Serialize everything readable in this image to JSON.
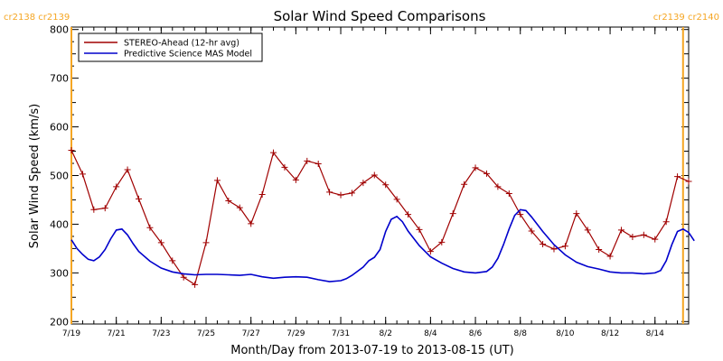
{
  "chart_data": {
    "type": "line",
    "title": "Solar Wind Speed Comparisons",
    "xlabel": "Month/Day from 2013-07-19 to 2013-08-15 (UT)",
    "ylabel": "Solar Wind Speed (km/s)",
    "xlim": [
      "2013-07-19",
      "2013-08-15T12:00"
    ],
    "ylim": [
      195,
      805
    ],
    "x_ticks": [
      {
        "date": "2013-07-19",
        "label": "7/19"
      },
      {
        "date": "2013-07-21",
        "label": "7/21"
      },
      {
        "date": "2013-07-23",
        "label": "7/23"
      },
      {
        "date": "2013-07-25",
        "label": "7/25"
      },
      {
        "date": "2013-07-27",
        "label": "7/27"
      },
      {
        "date": "2013-07-29",
        "label": "7/29"
      },
      {
        "date": "2013-07-31",
        "label": "7/31"
      },
      {
        "date": "2013-08-02",
        "label": "8/2"
      },
      {
        "date": "2013-08-04",
        "label": "8/4"
      },
      {
        "date": "2013-08-06",
        "label": "8/6"
      },
      {
        "date": "2013-08-08",
        "label": "8/8"
      },
      {
        "date": "2013-08-10",
        "label": "8/10"
      },
      {
        "date": "2013-08-12",
        "label": "8/12"
      },
      {
        "date": "2013-08-14",
        "label": "8/14"
      }
    ],
    "y_ticks": [
      200,
      300,
      400,
      500,
      600,
      700,
      800
    ],
    "legend_position": "top-left",
    "carrington_markers": [
      {
        "date": "2013-07-19",
        "label": "cr2138 cr2139",
        "color": "#f5a623"
      },
      {
        "date": "2013-08-15T06:00",
        "label": "cr2139 cr2140",
        "color": "#f5a623"
      }
    ],
    "series": [
      {
        "name": "STEREO-Ahead (12-hr avg)",
        "color": "#a00000",
        "markers": true,
        "points": [
          [
            "2013-07-19T00:00",
            552
          ],
          [
            "2013-07-19T12:00",
            503
          ],
          [
            "2013-07-20T00:00",
            430
          ],
          [
            "2013-07-20T12:00",
            433
          ],
          [
            "2013-07-21T00:00",
            477
          ],
          [
            "2013-07-21T12:00",
            512
          ],
          [
            "2013-07-22T00:00",
            452
          ],
          [
            "2013-07-22T12:00",
            393
          ],
          [
            "2013-07-23T00:00",
            362
          ],
          [
            "2013-07-23T12:00",
            325
          ],
          [
            "2013-07-24T00:00",
            291
          ],
          [
            "2013-07-24T12:00",
            276
          ],
          [
            "2013-07-25T00:00",
            362
          ],
          [
            "2013-07-25T12:00",
            490
          ],
          [
            "2013-07-26T00:00",
            448
          ],
          [
            "2013-07-26T12:00",
            434
          ],
          [
            "2013-07-27T00:00",
            401
          ],
          [
            "2013-07-27T12:00",
            461
          ],
          [
            "2013-07-28T00:00",
            547
          ],
          [
            "2013-07-28T12:00",
            517
          ],
          [
            "2013-07-29T00:00",
            491
          ],
          [
            "2013-07-29T12:00",
            530
          ],
          [
            "2013-07-30T00:00",
            524
          ],
          [
            "2013-07-30T12:00",
            466
          ],
          [
            "2013-07-31T00:00",
            460
          ],
          [
            "2013-07-31T12:00",
            464
          ],
          [
            "2013-08-01T00:00",
            485
          ],
          [
            "2013-08-01T12:00",
            501
          ],
          [
            "2013-08-02T00:00",
            481
          ],
          [
            "2013-08-02T12:00",
            451
          ],
          [
            "2013-08-03T00:00",
            420
          ],
          [
            "2013-08-03T12:00",
            389
          ],
          [
            "2013-08-04T00:00",
            344
          ],
          [
            "2013-08-04T12:00",
            363
          ],
          [
            "2013-08-05T00:00",
            422
          ],
          [
            "2013-08-05T12:00",
            482
          ],
          [
            "2013-08-06T00:00",
            516
          ],
          [
            "2013-08-06T12:00",
            504
          ],
          [
            "2013-08-07T00:00",
            477
          ],
          [
            "2013-08-07T12:00",
            463
          ],
          [
            "2013-08-08T00:00",
            420
          ],
          [
            "2013-08-08T12:00",
            386
          ],
          [
            "2013-08-09T00:00",
            359
          ],
          [
            "2013-08-09T12:00",
            349
          ],
          [
            "2013-08-10T00:00",
            355
          ],
          [
            "2013-08-10T12:00",
            422
          ],
          [
            "2013-08-11T00:00",
            388
          ],
          [
            "2013-08-11T12:00",
            348
          ],
          [
            "2013-08-12T00:00",
            334
          ],
          [
            "2013-08-12T12:00",
            388
          ],
          [
            "2013-08-13T00:00",
            374
          ],
          [
            "2013-08-13T12:00",
            378
          ],
          [
            "2013-08-14T00:00",
            369
          ],
          [
            "2013-08-14T12:00",
            405
          ],
          [
            "2013-08-15T00:00",
            498
          ],
          [
            "2013-08-15T12:00",
            488
          ]
        ]
      },
      {
        "name": "Predictive Science MAS Model",
        "color": "#0000cc",
        "markers": false,
        "points": [
          [
            "2013-07-19T00:00",
            368
          ],
          [
            "2013-07-19T06:00",
            350
          ],
          [
            "2013-07-19T12:00",
            338
          ],
          [
            "2013-07-19T18:00",
            328
          ],
          [
            "2013-07-20T00:00",
            325
          ],
          [
            "2013-07-20T06:00",
            333
          ],
          [
            "2013-07-20T12:00",
            348
          ],
          [
            "2013-07-20T18:00",
            370
          ],
          [
            "2013-07-21T00:00",
            388
          ],
          [
            "2013-07-21T06:00",
            390
          ],
          [
            "2013-07-21T12:00",
            378
          ],
          [
            "2013-07-21T18:00",
            360
          ],
          [
            "2013-07-22T00:00",
            344
          ],
          [
            "2013-07-22T12:00",
            324
          ],
          [
            "2013-07-23T00:00",
            310
          ],
          [
            "2013-07-23T12:00",
            302
          ],
          [
            "2013-07-24T00:00",
            298
          ],
          [
            "2013-07-24T12:00",
            296
          ],
          [
            "2013-07-25T00:00",
            297
          ],
          [
            "2013-07-25T12:00",
            297
          ],
          [
            "2013-07-26T00:00",
            296
          ],
          [
            "2013-07-26T12:00",
            295
          ],
          [
            "2013-07-27T00:00",
            297
          ],
          [
            "2013-07-27T12:00",
            292
          ],
          [
            "2013-07-28T00:00",
            289
          ],
          [
            "2013-07-28T12:00",
            291
          ],
          [
            "2013-07-29T00:00",
            292
          ],
          [
            "2013-07-29T12:00",
            291
          ],
          [
            "2013-07-30T00:00",
            286
          ],
          [
            "2013-07-30T12:00",
            282
          ],
          [
            "2013-07-31T00:00",
            284
          ],
          [
            "2013-07-31T06:00",
            288
          ],
          [
            "2013-07-31T12:00",
            295
          ],
          [
            "2013-08-01T00:00",
            312
          ],
          [
            "2013-08-01T06:00",
            325
          ],
          [
            "2013-08-01T12:00",
            332
          ],
          [
            "2013-08-01T18:00",
            348
          ],
          [
            "2013-08-02T00:00",
            385
          ],
          [
            "2013-08-02T06:00",
            410
          ],
          [
            "2013-08-02T12:00",
            416
          ],
          [
            "2013-08-02T18:00",
            405
          ],
          [
            "2013-08-03T00:00",
            386
          ],
          [
            "2013-08-03T12:00",
            356
          ],
          [
            "2013-08-04T00:00",
            333
          ],
          [
            "2013-08-04T12:00",
            320
          ],
          [
            "2013-08-05T00:00",
            309
          ],
          [
            "2013-08-05T12:00",
            302
          ],
          [
            "2013-08-06T00:00",
            300
          ],
          [
            "2013-08-06T12:00",
            303
          ],
          [
            "2013-08-06T18:00",
            312
          ],
          [
            "2013-08-07T00:00",
            330
          ],
          [
            "2013-08-07T06:00",
            358
          ],
          [
            "2013-08-07T12:00",
            390
          ],
          [
            "2013-08-07T18:00",
            418
          ],
          [
            "2013-08-08T00:00",
            430
          ],
          [
            "2013-08-08T06:00",
            428
          ],
          [
            "2013-08-08T12:00",
            415
          ],
          [
            "2013-08-09T00:00",
            385
          ],
          [
            "2013-08-09T12:00",
            358
          ],
          [
            "2013-08-10T00:00",
            337
          ],
          [
            "2013-08-10T12:00",
            322
          ],
          [
            "2013-08-11T00:00",
            313
          ],
          [
            "2013-08-11T12:00",
            308
          ],
          [
            "2013-08-12T00:00",
            302
          ],
          [
            "2013-08-12T12:00",
            300
          ],
          [
            "2013-08-13T00:00",
            300
          ],
          [
            "2013-08-13T12:00",
            298
          ],
          [
            "2013-08-14T00:00",
            300
          ],
          [
            "2013-08-14T06:00",
            305
          ],
          [
            "2013-08-14T12:00",
            325
          ],
          [
            "2013-08-14T18:00",
            358
          ],
          [
            "2013-08-15T00:00",
            385
          ],
          [
            "2013-08-15T06:00",
            390
          ],
          [
            "2013-08-15T12:00",
            383
          ],
          [
            "2013-08-15T18:00",
            366
          ]
        ]
      }
    ]
  }
}
